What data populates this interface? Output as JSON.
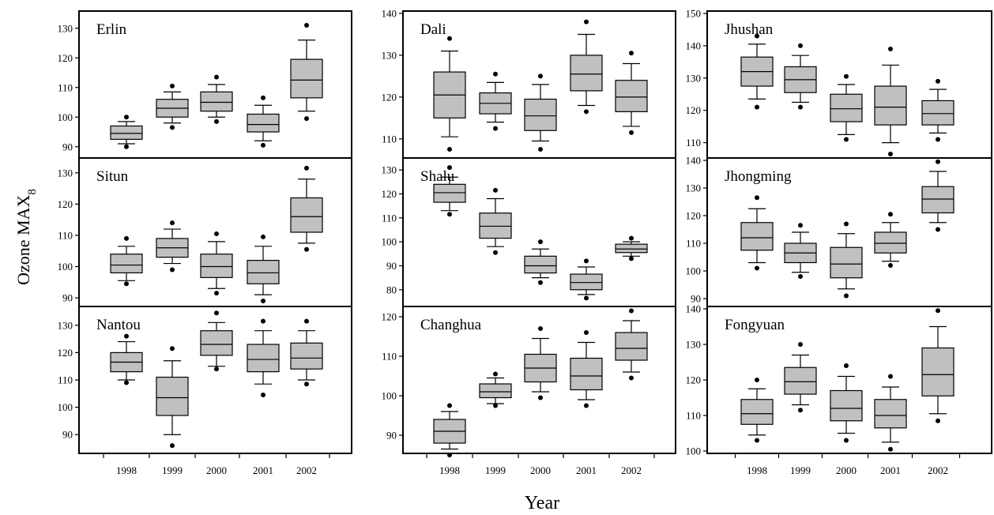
{
  "labels": {
    "ylabel_main": "Ozone MAX",
    "ylabel_sub": "8",
    "xlabel": "Year"
  },
  "chart_data": {
    "type": "box",
    "categories": [
      "1998",
      "1999",
      "2000",
      "2001",
      "2002"
    ],
    "panels": [
      {
        "title": "Erlin",
        "ylim": [
          87,
          135
        ],
        "yticks": [
          90,
          100,
          110,
          120,
          130
        ],
        "boxes": [
          {
            "whislo": 91,
            "q1": 92.5,
            "med": 94.5,
            "q3": 97,
            "whishi": 98.5,
            "fliers": [
              90,
              100
            ]
          },
          {
            "whislo": 98,
            "q1": 100,
            "med": 103,
            "q3": 106,
            "whishi": 108.5,
            "fliers": [
              96.5,
              110.5
            ]
          },
          {
            "whislo": 100,
            "q1": 102,
            "med": 105,
            "q3": 108.5,
            "whishi": 111,
            "fliers": [
              98.5,
              113.5
            ]
          },
          {
            "whislo": 92,
            "q1": 95,
            "med": 97.5,
            "q3": 101,
            "whishi": 104,
            "fliers": [
              90.5,
              106.5
            ]
          },
          {
            "whislo": 102,
            "q1": 106.5,
            "med": 112.5,
            "q3": 119.5,
            "whishi": 126,
            "fliers": [
              99.5,
              131
            ]
          }
        ]
      },
      {
        "title": "Situn",
        "ylim": [
          88,
          134
        ],
        "yticks": [
          90,
          100,
          110,
          120,
          130
        ],
        "boxes": [
          {
            "whislo": 95.5,
            "q1": 98,
            "med": 100.5,
            "q3": 104,
            "whishi": 106.5,
            "fliers": [
              94.5,
              109
            ]
          },
          {
            "whislo": 101,
            "q1": 103,
            "med": 106,
            "q3": 109,
            "whishi": 112,
            "fliers": [
              99,
              114
            ]
          },
          {
            "whislo": 93,
            "q1": 96.5,
            "med": 100,
            "q3": 104,
            "whishi": 108,
            "fliers": [
              91.5,
              110.5
            ]
          },
          {
            "whislo": 91,
            "q1": 94.5,
            "med": 98,
            "q3": 102,
            "whishi": 106.5,
            "fliers": [
              89,
              109.5
            ]
          },
          {
            "whislo": 107.5,
            "q1": 111,
            "med": 116,
            "q3": 122,
            "whishi": 128,
            "fliers": [
              105.5,
              131.5
            ]
          }
        ]
      },
      {
        "title": "Nantou",
        "ylim": [
          84,
          136
        ],
        "yticks": [
          90,
          100,
          110,
          120,
          130
        ],
        "boxes": [
          {
            "whislo": 110,
            "q1": 113,
            "med": 116.5,
            "q3": 120,
            "whishi": 124,
            "fliers": [
              109,
              126
            ]
          },
          {
            "whislo": 90,
            "q1": 97,
            "med": 103.5,
            "q3": 111,
            "whishi": 117,
            "fliers": [
              86,
              121.5
            ]
          },
          {
            "whislo": 115,
            "q1": 119,
            "med": 123,
            "q3": 128,
            "whishi": 131,
            "fliers": [
              114,
              134.5
            ]
          },
          {
            "whislo": 108.5,
            "q1": 113,
            "med": 117.5,
            "q3": 123,
            "whishi": 128,
            "fliers": [
              104.5,
              131.5
            ]
          },
          {
            "whislo": 110,
            "q1": 114,
            "med": 118,
            "q3": 123.5,
            "whishi": 128,
            "fliers": [
              108.5,
              131.5
            ]
          }
        ]
      },
      {
        "title": "Dali",
        "ylim": [
          106,
          140
        ],
        "yticks": [
          110,
          120,
          130,
          140
        ],
        "boxes": [
          {
            "whislo": 110.5,
            "q1": 115,
            "med": 120.5,
            "q3": 126,
            "whishi": 131,
            "fliers": [
              107.5,
              134
            ]
          },
          {
            "whislo": 114,
            "q1": 116,
            "med": 118.5,
            "q3": 121,
            "whishi": 123.5,
            "fliers": [
              112.5,
              125.5
            ]
          },
          {
            "whislo": 109.5,
            "q1": 112,
            "med": 115.5,
            "q3": 119.5,
            "whishi": 123,
            "fliers": [
              107.5,
              125
            ]
          },
          {
            "whislo": 118,
            "q1": 121.5,
            "med": 125.5,
            "q3": 130,
            "whishi": 135,
            "fliers": [
              116.5,
              138
            ]
          },
          {
            "whislo": 113,
            "q1": 116.5,
            "med": 120,
            "q3": 124,
            "whishi": 128,
            "fliers": [
              111.5,
              130.5
            ]
          }
        ]
      },
      {
        "title": "Shalu",
        "ylim": [
          74,
          134
        ],
        "yticks": [
          80,
          90,
          100,
          110,
          120,
          130
        ],
        "boxes": [
          {
            "whislo": 113,
            "q1": 116.5,
            "med": 120.5,
            "q3": 124,
            "whishi": 127,
            "fliers": [
              111.5,
              131
            ]
          },
          {
            "whislo": 98,
            "q1": 101.5,
            "med": 106.5,
            "q3": 112,
            "whishi": 118,
            "fliers": [
              95.5,
              121.5
            ]
          },
          {
            "whislo": 85,
            "q1": 87,
            "med": 90,
            "q3": 94,
            "whishi": 97,
            "fliers": [
              83,
              100
            ]
          },
          {
            "whislo": 78,
            "q1": 80,
            "med": 83,
            "q3": 86.5,
            "whishi": 89.5,
            "fliers": [
              76.5,
              92
            ]
          },
          {
            "whislo": 94,
            "q1": 95.5,
            "med": 97,
            "q3": 99,
            "whishi": 100,
            "fliers": [
              93,
              101.5
            ]
          }
        ]
      },
      {
        "title": "Changhua",
        "ylim": [
          86,
          122
        ],
        "yticks": [
          90,
          100,
          110,
          120
        ],
        "boxes": [
          {
            "whislo": 86.5,
            "q1": 88,
            "med": 91,
            "q3": 94,
            "whishi": 96,
            "fliers": [
              85,
              97.5
            ]
          },
          {
            "whislo": 98,
            "q1": 99.5,
            "med": 101,
            "q3": 103,
            "whishi": 104.5,
            "fliers": [
              97.5,
              105.5
            ]
          },
          {
            "whislo": 101,
            "q1": 103.5,
            "med": 107,
            "q3": 110.5,
            "whishi": 114.5,
            "fliers": [
              99.5,
              117
            ]
          },
          {
            "whislo": 99,
            "q1": 101.5,
            "med": 105,
            "q3": 109.5,
            "whishi": 113.5,
            "fliers": [
              97.5,
              116
            ]
          },
          {
            "whislo": 106,
            "q1": 109,
            "med": 112,
            "q3": 116,
            "whishi": 119,
            "fliers": [
              104.5,
              121.5
            ]
          }
        ]
      },
      {
        "title": "Jhushan",
        "ylim": [
          106,
          150
        ],
        "yticks": [
          110,
          120,
          130,
          140,
          150
        ],
        "boxes": [
          {
            "whislo": 123.5,
            "q1": 127.5,
            "med": 132,
            "q3": 136.5,
            "whishi": 140.5,
            "fliers": [
              121,
              143
            ]
          },
          {
            "whislo": 122.5,
            "q1": 125.5,
            "med": 129.5,
            "q3": 133.5,
            "whishi": 137,
            "fliers": [
              121,
              140
            ]
          },
          {
            "whislo": 112.5,
            "q1": 116.5,
            "med": 120.5,
            "q3": 125,
            "whishi": 128,
            "fliers": [
              111,
              130.5
            ]
          },
          {
            "whislo": 110,
            "q1": 115.5,
            "med": 121,
            "q3": 127.5,
            "whishi": 134,
            "fliers": [
              106.5,
              139
            ]
          },
          {
            "whislo": 113,
            "q1": 115.5,
            "med": 119,
            "q3": 123,
            "whishi": 126.5,
            "fliers": [
              111,
              129
            ]
          }
        ]
      },
      {
        "title": "Jhongming",
        "ylim": [
          88,
          140
        ],
        "yticks": [
          90,
          100,
          110,
          120,
          130,
          140
        ],
        "boxes": [
          {
            "whislo": 103,
            "q1": 107.5,
            "med": 112,
            "q3": 117.5,
            "whishi": 122.5,
            "fliers": [
              101,
              126.5
            ]
          },
          {
            "whislo": 99.5,
            "q1": 103,
            "med": 106.5,
            "q3": 110,
            "whishi": 114,
            "fliers": [
              98,
              116.5
            ]
          },
          {
            "whislo": 93.5,
            "q1": 97.5,
            "med": 102.5,
            "q3": 108.5,
            "whishi": 113.5,
            "fliers": [
              91,
              117
            ]
          },
          {
            "whislo": 103.5,
            "q1": 106.5,
            "med": 110,
            "q3": 114,
            "whishi": 117.5,
            "fliers": [
              102,
              120.5
            ]
          },
          {
            "whislo": 117.5,
            "q1": 121,
            "med": 126,
            "q3": 130.5,
            "whishi": 136,
            "fliers": [
              115,
              139.5
            ]
          }
        ]
      },
      {
        "title": "Fongyuan",
        "ylim": [
          100,
          140
        ],
        "yticks": [
          100,
          110,
          120,
          130,
          140
        ],
        "boxes": [
          {
            "whislo": 104.5,
            "q1": 107.5,
            "med": 110.5,
            "q3": 114.5,
            "whishi": 117.5,
            "fliers": [
              103,
              120
            ]
          },
          {
            "whislo": 113,
            "q1": 116,
            "med": 119.5,
            "q3": 123.5,
            "whishi": 127,
            "fliers": [
              111.5,
              130
            ]
          },
          {
            "whislo": 105,
            "q1": 108.5,
            "med": 112,
            "q3": 117,
            "whishi": 121,
            "fliers": [
              103,
              124
            ]
          },
          {
            "whislo": 102.5,
            "q1": 106.5,
            "med": 110,
            "q3": 114.5,
            "whishi": 118,
            "fliers": [
              100.5,
              121
            ]
          },
          {
            "whislo": 110.5,
            "q1": 115.5,
            "med": 121.5,
            "q3": 129,
            "whishi": 135,
            "fliers": [
              108.5,
              139.5
            ]
          }
        ]
      }
    ]
  }
}
